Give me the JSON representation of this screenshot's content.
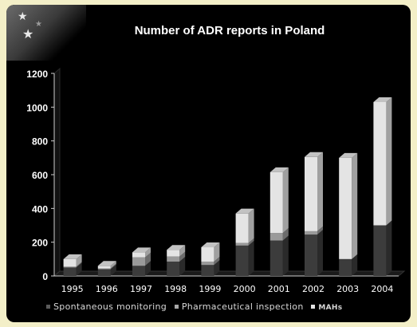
{
  "chart_data": {
    "type": "bar",
    "stacked": true,
    "title": "Number of ADR reports in Poland",
    "categories": [
      "1995",
      "1996",
      "1997",
      "1998",
      "1999",
      "2000",
      "2001",
      "2002",
      "2003",
      "2004"
    ],
    "ylim": [
      0,
      1200
    ],
    "yticks": [
      0,
      200,
      400,
      600,
      800,
      1000,
      1200
    ],
    "grid": false,
    "legend_position": "bottom",
    "series": [
      {
        "name": "Spontaneous   monitoring",
        "color": "#3c3c3c",
        "values": [
          50,
          40,
          60,
          85,
          65,
          180,
          210,
          245,
          100,
          300
        ]
      },
      {
        "name": "Pharmaceutical   inspection",
        "color": "#9a9a9a",
        "values": [
          5,
          5,
          50,
          30,
          20,
          15,
          45,
          20,
          0,
          0
        ]
      },
      {
        "name": "MAHs",
        "color": "#e4e4e4",
        "values": [
          45,
          15,
          30,
          40,
          85,
          175,
          360,
          440,
          600,
          730
        ]
      }
    ]
  }
}
